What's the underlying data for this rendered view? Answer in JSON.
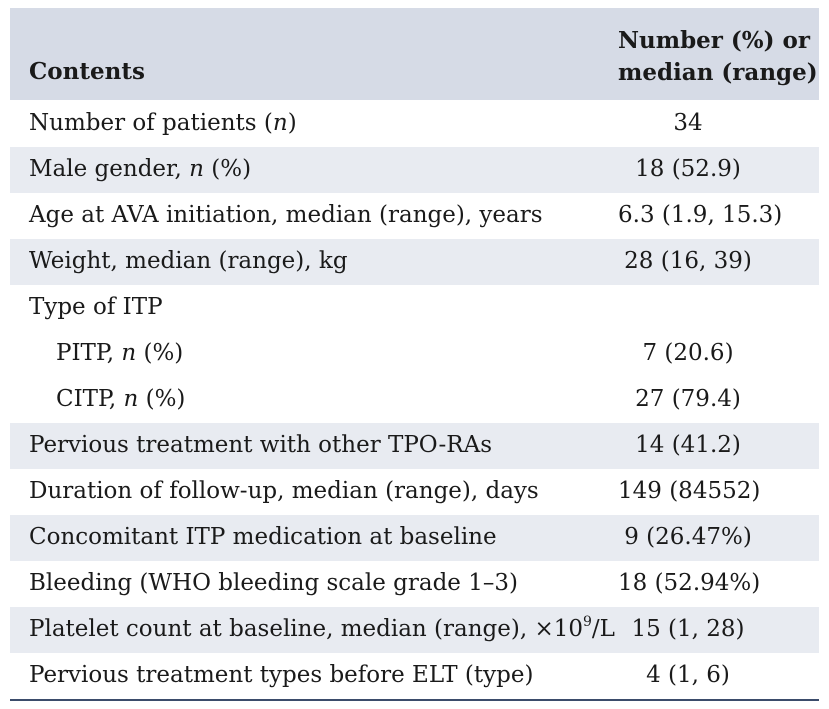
{
  "header": {
    "contents": "Contents",
    "value_line1": "Number (%) or",
    "value_line2": "median (range)"
  },
  "rows": [
    {
      "label_pre": "Number of patients (",
      "label_italic": "n",
      "label_post": ")",
      "value": "34"
    },
    {
      "label_pre": "Male gender, ",
      "label_italic": "n",
      "label_post": " (%)",
      "value": "18 (52.9)"
    },
    {
      "label": "Age at AVA initiation, median (range), years",
      "value": "6.3 (1.9, 15.3)"
    },
    {
      "label": "Weight, median (range), kg",
      "value": "28 (16, 39)"
    },
    {
      "label": "Type of ITP",
      "value": ""
    },
    {
      "label_pre": "PITP, ",
      "label_italic": "n",
      "label_post": " (%)",
      "value": "7 (20.6)"
    },
    {
      "label_pre": "CITP, ",
      "label_italic": "n",
      "label_post": " (%)",
      "value": "27 (79.4)"
    },
    {
      "label": "Pervious treatment with other TPO-RAs",
      "value": "14 (41.2)"
    },
    {
      "label": "Duration of follow-up, median (range), days",
      "value": "149 (84552)"
    },
    {
      "label": "Concomitant ITP medication at baseline",
      "value": "9 (26.47%)"
    },
    {
      "label": "Bleeding (WHO bleeding scale grade 1–3)",
      "value": "18 (52.94%)"
    },
    {
      "label_pre": "Platelet count at baseline, median (range), ×10",
      "label_sup": "9",
      "label_post": "/L",
      "value": "15 (1, 28)"
    },
    {
      "label": "Pervious treatment types before ELT (type)",
      "value": "4 (1, 6)"
    }
  ]
}
